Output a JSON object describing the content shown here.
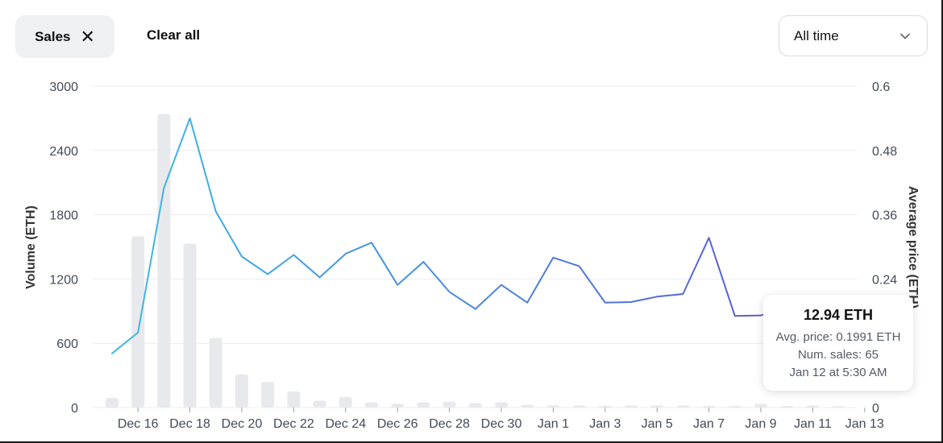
{
  "filters": {
    "active_chip": "Sales",
    "clear_label": "Clear all"
  },
  "time_range": {
    "selected": "All time"
  },
  "colors": {
    "bar": "#e8e9ec",
    "line_start": "#3bbde3",
    "line_end": "#5b4fd6",
    "grid": "#ececef"
  },
  "icons": {
    "remove": "close-icon",
    "dropdown": "chevron-down-icon"
  },
  "chart_data": {
    "type": "bar",
    "title": "",
    "xlabel": "",
    "ylabel": "Volume (ETH)",
    "y2label": "Average price (ETH)",
    "ylim": [
      0,
      3000
    ],
    "y2lim": [
      0,
      0.6
    ],
    "yticks": [
      "0",
      "600",
      "1200",
      "1800",
      "2400",
      "3000"
    ],
    "y2ticks": [
      "0",
      "0.12",
      "0.24",
      "0.36",
      "0.48",
      "0.6"
    ],
    "grid": true,
    "categories": [
      "Dec 15",
      "Dec 16",
      "Dec 17",
      "Dec 18",
      "Dec 19",
      "Dec 20",
      "Dec 21",
      "Dec 22",
      "Dec 23",
      "Dec 24",
      "Dec 25",
      "Dec 26",
      "Dec 27",
      "Dec 28",
      "Dec 29",
      "Dec 30",
      "Dec 31",
      "Jan 1",
      "Jan 2",
      "Jan 3",
      "Jan 4",
      "Jan 5",
      "Jan 6",
      "Jan 7",
      "Jan 8",
      "Jan 9",
      "Jan 10",
      "Jan 11",
      "Jan 12"
    ],
    "xtick_labels": [
      "Dec 16",
      "Dec 18",
      "Dec 20",
      "Dec 22",
      "Dec 24",
      "Dec 26",
      "Dec 28",
      "Dec 30",
      "Jan 1",
      "Jan 3",
      "Jan 5",
      "Jan 7",
      "Jan 9",
      "Jan 11",
      "Jan 13"
    ],
    "series": [
      {
        "name": "Volume (ETH)",
        "type": "bar",
        "axis": "left",
        "values": [
          90,
          1600,
          2740,
          1530,
          650,
          310,
          240,
          150,
          65,
          100,
          50,
          35,
          50,
          55,
          40,
          50,
          25,
          20,
          20,
          15,
          20,
          20,
          20,
          15,
          15,
          35,
          15,
          20,
          12.94
        ]
      },
      {
        "name": "Average price (ETH)",
        "type": "line",
        "axis": "right",
        "values": [
          0.101,
          0.14,
          0.41,
          0.54,
          0.366,
          0.282,
          0.249,
          0.285,
          0.243,
          0.287,
          0.308,
          0.229,
          0.272,
          0.216,
          0.184,
          0.229,
          0.196,
          0.28,
          0.264,
          0.196,
          0.197,
          0.207,
          0.212,
          0.317,
          0.171,
          0.172,
          0.186,
          null,
          null
        ]
      }
    ],
    "tooltip": {
      "value": "12.94 ETH",
      "avg_price": "Avg. price: 0.1991 ETH",
      "num_sales": "Num. sales: 65",
      "timestamp": "Jan 12 at 5:30 AM"
    }
  }
}
